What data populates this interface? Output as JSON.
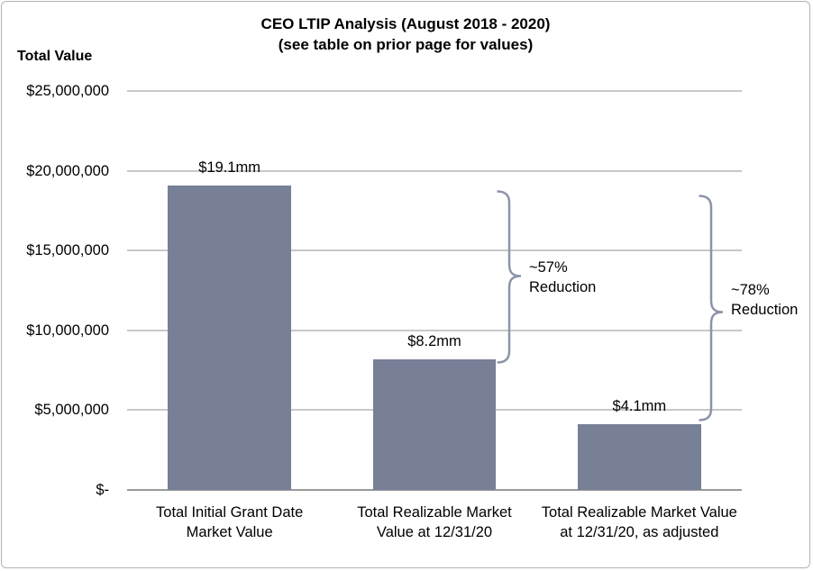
{
  "chart_data": {
    "type": "bar",
    "title": "CEO LTIP Analysis (August 2018 - 2020)",
    "subtitle": "(see table on prior page for values)",
    "y_axis_title": "Total Value",
    "categories": [
      [
        "Total Initial Grant Date",
        "Market Value"
      ],
      [
        "Total Realizable Market",
        "Value at 12/31/20"
      ],
      [
        "Total Realizable Market Value",
        "at 12/31/20, as adjusted"
      ]
    ],
    "values": [
      19100000,
      8200000,
      4100000
    ],
    "value_labels": [
      "$19.1mm",
      "$8.2mm",
      "$4.1mm"
    ],
    "y_ticks": [
      {
        "label": "$25,000,000",
        "value": 25000000
      },
      {
        "label": "$20,000,000",
        "value": 20000000
      },
      {
        "label": "$15,000,000",
        "value": 15000000
      },
      {
        "label": "$10,000,000",
        "value": 10000000
      },
      {
        "label": "$5,000,000",
        "value": 5000000
      },
      {
        "label": "$-",
        "value": 0
      }
    ],
    "ylim": [
      0,
      25000000
    ],
    "grid": true,
    "legend": "none",
    "bar_color": "#778097",
    "gridline_color": "#c8c8c8",
    "axis_line_color": "#9a9a9a",
    "brace_color": "#8c94a9",
    "annotations": [
      {
        "lines": [
          "~57%",
          "Reduction"
        ]
      },
      {
        "lines": [
          "~78%",
          "Reduction"
        ]
      }
    ]
  }
}
